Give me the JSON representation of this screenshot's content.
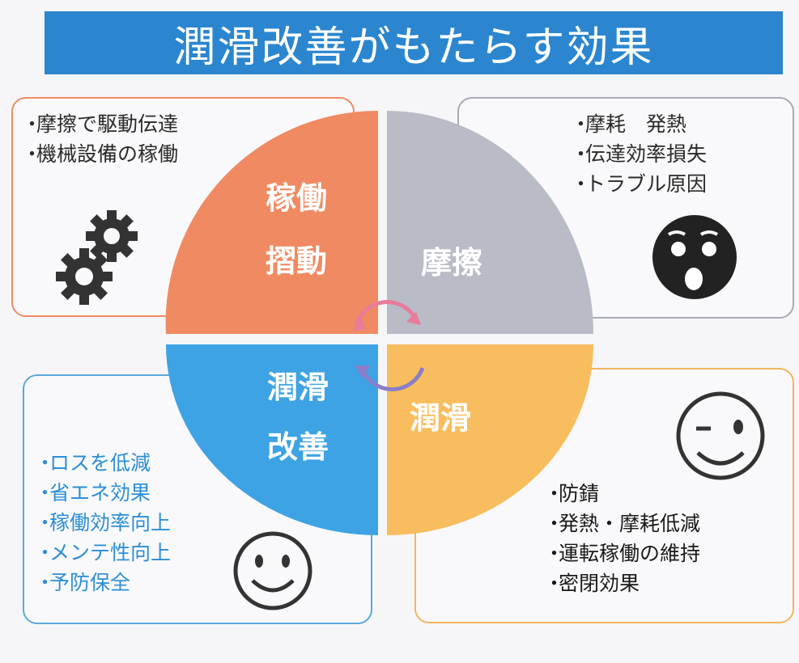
{
  "title": "潤滑改善がもたらす効果",
  "quadrants": {
    "top_left": {
      "line1": "稼働",
      "line2": "摺動",
      "color": "#f08a62"
    },
    "top_right": {
      "line1": "摩擦",
      "color": "#b9bbc6"
    },
    "bottom_left": {
      "line1": "潤滑",
      "line2": "改善",
      "color": "#3ea3e4"
    },
    "bottom_right": {
      "line1": "潤滑",
      "color": "#f8bd5e"
    }
  },
  "boxes": {
    "top_left": {
      "items": [
        "摩擦で駆動伝達",
        "機械設備の稼働"
      ],
      "bullet": "・",
      "icon": "gears-icon"
    },
    "top_right": {
      "items": [
        "摩耗　発熱",
        "伝達効率損失",
        "トラブル原因"
      ],
      "bullet": "・",
      "icon": "shocked-face-icon"
    },
    "bottom_left": {
      "items": [
        "ロスを低減",
        "省エネ効果",
        "稼働効率向上",
        "メンテ性向上",
        "予防保全"
      ],
      "bullet": "・",
      "icon": "smiley-face-icon"
    },
    "bottom_right": {
      "items": [
        "防錆",
        "発熱・摩耗低減",
        "運転稼働の維持",
        "密閉効果"
      ],
      "bullet": "・",
      "icon": "winking-face-icon"
    }
  }
}
